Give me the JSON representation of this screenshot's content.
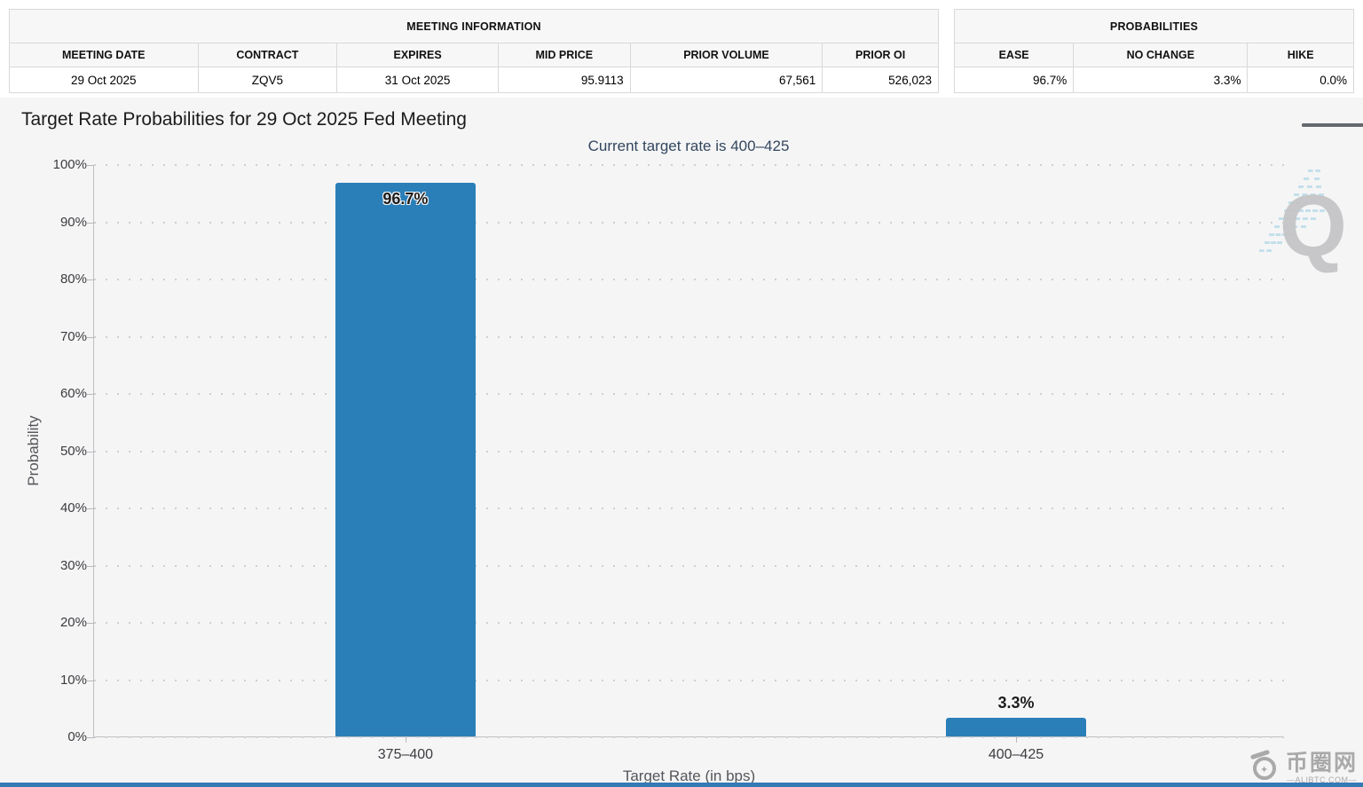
{
  "meeting_table": {
    "title": "MEETING INFORMATION",
    "columns": [
      {
        "label": "MEETING DATE",
        "value": "29 Oct 2025"
      },
      {
        "label": "CONTRACT",
        "value": "ZQV5"
      },
      {
        "label": "EXPIRES",
        "value": "31 Oct 2025"
      },
      {
        "label": "MID PRICE",
        "value": "95.9113"
      },
      {
        "label": "PRIOR VOLUME",
        "value": "67,561"
      },
      {
        "label": "PRIOR OI",
        "value": "526,023"
      }
    ]
  },
  "probabilities_table": {
    "title": "PROBABILITIES",
    "columns": [
      {
        "label": "EASE",
        "value": "96.7%"
      },
      {
        "label": "NO CHANGE",
        "value": "3.3%"
      },
      {
        "label": "HIKE",
        "value": "0.0%"
      }
    ]
  },
  "chart_data": {
    "type": "bar",
    "title": "Target Rate Probabilities for 29 Oct 2025 Fed Meeting",
    "subtitle": "Current target rate is 400–425",
    "categories": [
      "375–400",
      "400–425"
    ],
    "values": [
      96.7,
      3.3
    ],
    "value_labels": [
      "96.7%",
      "3.3%"
    ],
    "xlabel": "Target Rate (in bps)",
    "ylabel": "Probability",
    "ylim": [
      0,
      100
    ],
    "ytick_step": 10,
    "ytick_labels": [
      "0%",
      "10%",
      "20%",
      "30%",
      "40%",
      "50%",
      "60%",
      "70%",
      "80%",
      "90%",
      "100%"
    ],
    "bar_color": "#2b7fb8",
    "grid": "dotted-horizontal",
    "legend": "none",
    "bar_center_fractions": [
      0.2615,
      0.7742
    ]
  },
  "watermarks": {
    "quikstrike_letter": "Q",
    "brand_name": "币圈网",
    "brand_domain": "—ALIBTC.COM—"
  },
  "colors": {
    "bar": "#2b7fb8",
    "chart_background": "#f5f5f6",
    "subtitle_text": "#33475e",
    "bottom_strip": "#3379b6"
  }
}
